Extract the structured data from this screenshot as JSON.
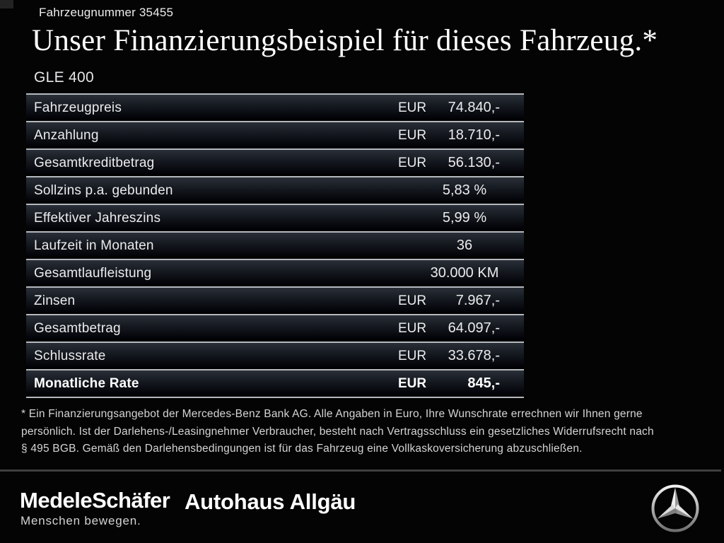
{
  "header": {
    "vehicle_number": "Fahrzeugnummer 35455",
    "title": "Unser Finanzierungsbeispiel für dieses Fahrzeug.*",
    "model": "GLE 400"
  },
  "financing_table": {
    "rows": [
      {
        "label": "Fahrzeugpreis",
        "currency": "EUR",
        "value": "74.840,-"
      },
      {
        "label": "Anzahlung",
        "currency": "EUR",
        "value": "18.710,-"
      },
      {
        "label": "Gesamtkreditbetrag",
        "currency": "EUR",
        "value": "56.130,-"
      },
      {
        "label": "Sollzins p.a. gebunden",
        "currency": "",
        "value": "5,83 %",
        "centered": true
      },
      {
        "label": "Effektiver Jahreszins",
        "currency": "",
        "value": "5,99 %",
        "centered": true
      },
      {
        "label": "Laufzeit in Monaten",
        "currency": "",
        "value": "36",
        "centered": true
      },
      {
        "label": "Gesamtlaufleistung",
        "currency": "",
        "value": "30.000 KM",
        "centered": true
      },
      {
        "label": "Zinsen",
        "currency": "EUR",
        "value": "7.967,-"
      },
      {
        "label": "Gesamtbetrag",
        "currency": "EUR",
        "value": "64.097,-"
      },
      {
        "label": "Schlussrate",
        "currency": "EUR",
        "value": "33.678,-"
      },
      {
        "label": "Monatliche Rate",
        "currency": "EUR",
        "value": "845,-",
        "bold": true
      }
    ]
  },
  "disclaimer": {
    "lines": [
      "* Ein Finanzierungsangebot der Mercedes-Benz Bank AG. Alle Angaben in Euro, Ihre Wunschrate errechnen wir Ihnen gerne",
      "persönlich. Ist der Darlehens-/Leasingnehmer Verbraucher, besteht nach Vertragsschluss ein gesetzliches Widerrufsrecht nach",
      "§ 495 BGB. Gemäß den Darlehensbedingungen ist für das Fahrzeug eine Vollkaskoversicherung abzuschließen."
    ]
  },
  "footer": {
    "dealer_logo_1": "MedeleSchäfer",
    "dealer_tagline": "Menschen bewegen.",
    "dealer_logo_2": "Autohaus Allgäu",
    "brand_logo": "mercedes-benz-star"
  },
  "colors": {
    "background": "#040404",
    "table_line": "#b5b9be",
    "row_gradient_top": "#2a2f38",
    "text_primary": "#eaebec",
    "disclaimer_text": "#d4d5d6",
    "footer_divider": "#3e3e3e",
    "logo_silver": "#e9e9e9"
  }
}
